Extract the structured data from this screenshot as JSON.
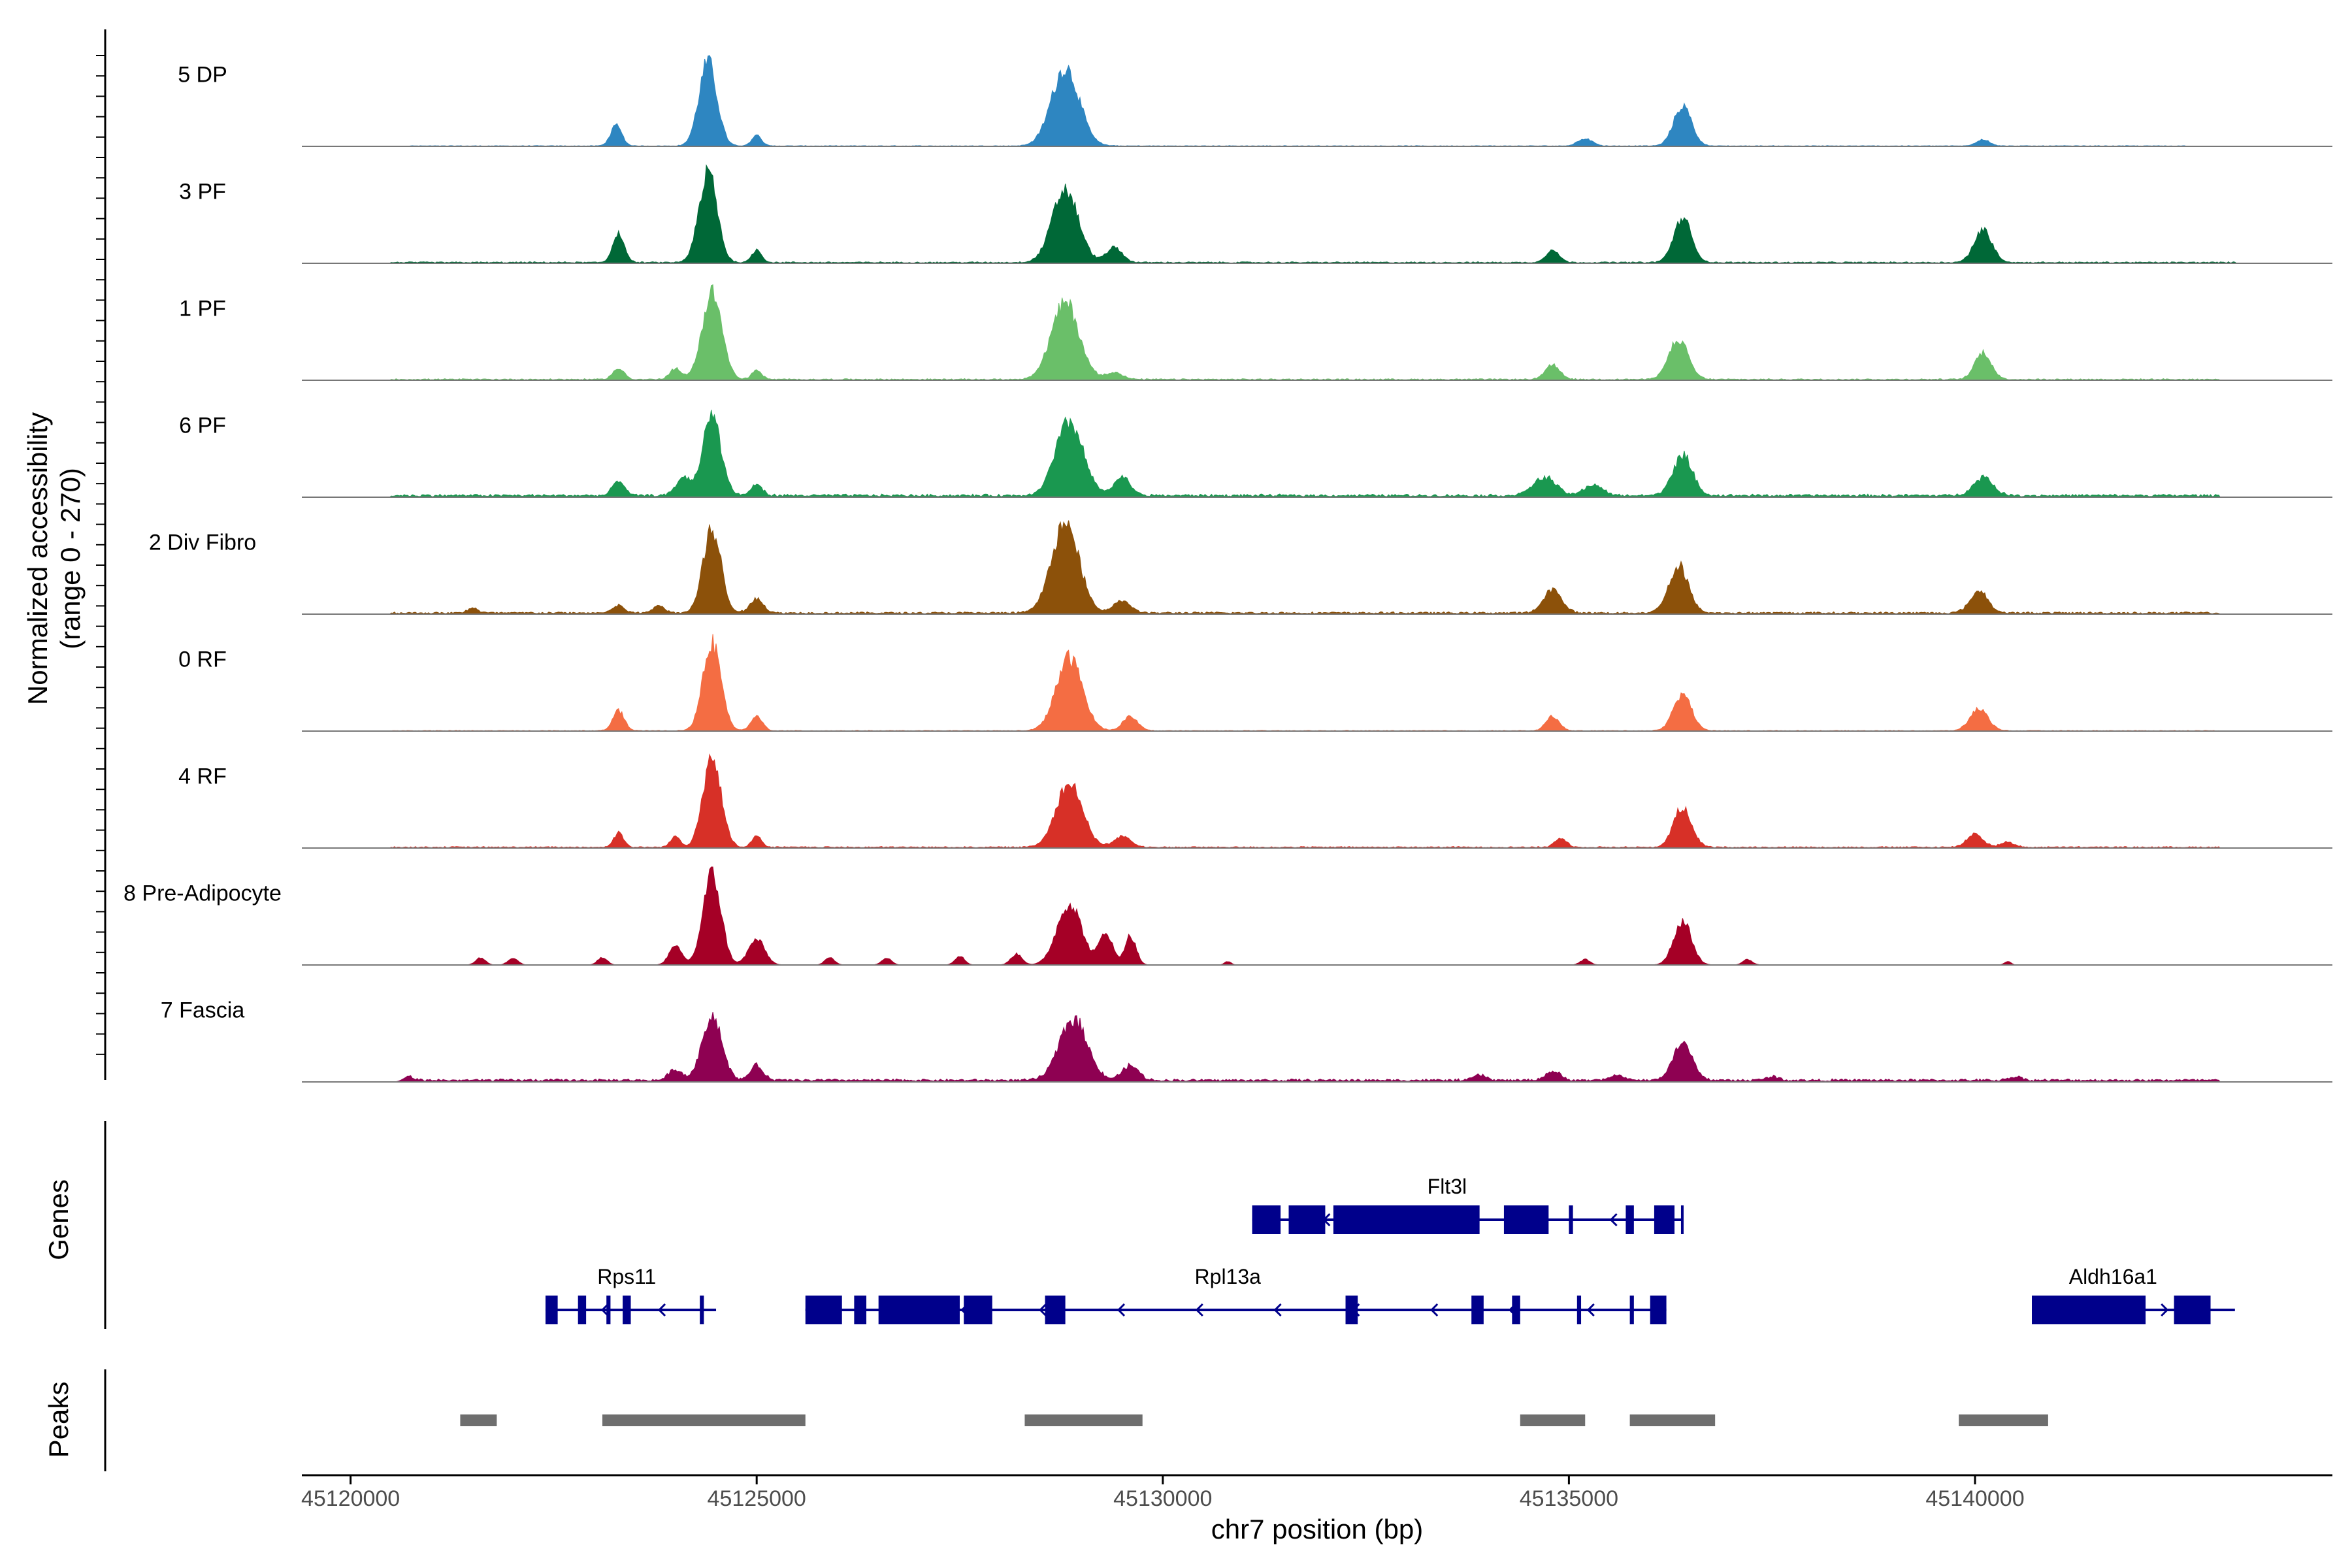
{
  "chart_data": {
    "type": "area",
    "title": "",
    "xlabel": "chr7 position (bp)",
    "ylabel": "Normalized accessibility",
    "ylabel_range": "(range 0 - 270)",
    "ylim": [
      0,
      270
    ],
    "xlim": [
      45119400,
      45144400
    ],
    "x_ticks": [
      45120000,
      45125000,
      45130000,
      45135000,
      45140000
    ],
    "x_tick_labels": [
      "45120000",
      "45125000",
      "45130000",
      "45135000",
      "45140000"
    ],
    "track_labels": {
      "genes": "Genes",
      "peaks": "Peaks"
    },
    "series": [
      {
        "name": "5 DP",
        "color": "#2e86c1",
        "peaks": [
          [
            45123270,
            55,
            70
          ],
          [
            45124400,
            230,
            110
          ],
          [
            45125000,
            30,
            60
          ],
          [
            45128800,
            215,
            170
          ],
          [
            45135200,
            20,
            90
          ],
          [
            45136400,
            110,
            110
          ],
          [
            45140100,
            18,
            80
          ]
        ],
        "bg_start": 45120700,
        "bg_end": 45142600,
        "noise": 1
      },
      {
        "name": "3 PF",
        "color": "#006837",
        "peaks": [
          [
            45123300,
            80,
            70
          ],
          [
            45124400,
            250,
            110
          ],
          [
            45125000,
            35,
            60
          ],
          [
            45128800,
            200,
            160
          ],
          [
            45129400,
            40,
            100
          ],
          [
            45134800,
            35,
            80
          ],
          [
            45136400,
            120,
            110
          ],
          [
            45140100,
            90,
            110
          ]
        ],
        "bg_start": 45120500,
        "bg_end": 45143200,
        "noise": 2
      },
      {
        "name": "1 PF",
        "color": "#6abf69",
        "peaks": [
          [
            45123300,
            30,
            70
          ],
          [
            45124000,
            30,
            70
          ],
          [
            45124450,
            240,
            120
          ],
          [
            45125000,
            25,
            60
          ],
          [
            45128800,
            210,
            170
          ],
          [
            45129400,
            20,
            100
          ],
          [
            45134800,
            40,
            90
          ],
          [
            45136350,
            110,
            120
          ],
          [
            45140100,
            75,
            100
          ]
        ],
        "bg_start": 45120500,
        "bg_end": 45143000,
        "noise": 2
      },
      {
        "name": "6 PF",
        "color": "#1a9850",
        "peaks": [
          [
            45123300,
            40,
            70
          ],
          [
            45124100,
            50,
            90
          ],
          [
            45124450,
            220,
            110
          ],
          [
            45125000,
            30,
            70
          ],
          [
            45128850,
            200,
            170
          ],
          [
            45129500,
            50,
            100
          ],
          [
            45134700,
            50,
            140
          ],
          [
            45135300,
            30,
            110
          ],
          [
            45136400,
            110,
            120
          ],
          [
            45140100,
            50,
            120
          ]
        ],
        "bg_start": 45120500,
        "bg_end": 45143000,
        "noise": 4
      },
      {
        "name": "2 Div Fibro",
        "color": "#8c510a",
        "peaks": [
          [
            45121500,
            14,
            60
          ],
          [
            45123300,
            20,
            70
          ],
          [
            45123800,
            20,
            70
          ],
          [
            45124450,
            230,
            110
          ],
          [
            45125000,
            40,
            80
          ],
          [
            45128800,
            240,
            170
          ],
          [
            45129500,
            35,
            100
          ],
          [
            45134800,
            65,
            110
          ],
          [
            45136350,
            130,
            120
          ],
          [
            45140050,
            60,
            110
          ]
        ],
        "bg_start": 45120500,
        "bg_end": 45143000,
        "noise": 3
      },
      {
        "name": "0 RF",
        "color": "#f46d43",
        "peaks": [
          [
            45123300,
            55,
            70
          ],
          [
            45124450,
            240,
            110
          ],
          [
            45125000,
            40,
            70
          ],
          [
            45128850,
            200,
            160
          ],
          [
            45129600,
            40,
            90
          ],
          [
            45134800,
            40,
            80
          ],
          [
            45136400,
            100,
            110
          ],
          [
            45140050,
            60,
            110
          ]
        ],
        "bg_start": 45120500,
        "bg_end": 45143000,
        "noise": 1
      },
      {
        "name": "4 RF",
        "color": "#d73027",
        "peaks": [
          [
            45123300,
            40,
            60
          ],
          [
            45124000,
            30,
            60
          ],
          [
            45124450,
            250,
            110
          ],
          [
            45125000,
            30,
            60
          ],
          [
            45128850,
            180,
            160
          ],
          [
            45129500,
            30,
            100
          ],
          [
            45134900,
            25,
            70
          ],
          [
            45136400,
            110,
            110
          ],
          [
            45140000,
            35,
            100
          ],
          [
            45140400,
            15,
            80
          ]
        ],
        "bg_start": 45120500,
        "bg_end": 45143000,
        "noise": 2
      },
      {
        "name": "8 Pre-Adipocyte",
        "color": "#a50026",
        "peaks": [
          [
            45121600,
            20,
            60
          ],
          [
            45122000,
            20,
            60
          ],
          [
            45123100,
            20,
            60
          ],
          [
            45124000,
            50,
            80
          ],
          [
            45124450,
            250,
            110
          ],
          [
            45125000,
            70,
            100
          ],
          [
            45125900,
            20,
            60
          ],
          [
            45126600,
            20,
            60
          ],
          [
            45127500,
            25,
            60
          ],
          [
            45128200,
            30,
            70
          ],
          [
            45128850,
            170,
            150
          ],
          [
            45129300,
            90,
            80
          ],
          [
            45129600,
            80,
            70
          ],
          [
            45130800,
            10,
            40
          ],
          [
            45135200,
            15,
            60
          ],
          [
            45136400,
            120,
            110
          ],
          [
            45137200,
            15,
            60
          ],
          [
            45140400,
            10,
            40
          ]
        ],
        "bg_start": 45121500,
        "bg_end": 45140500,
        "noise": 0
      },
      {
        "name": "7 Fascia",
        "color": "#8e0152",
        "peaks": [
          [
            45120700,
            12,
            60
          ],
          [
            45124000,
            30,
            80
          ],
          [
            45124450,
            180,
            120
          ],
          [
            45125000,
            40,
            80
          ],
          [
            45128900,
            170,
            170
          ],
          [
            45129600,
            40,
            100
          ],
          [
            45133900,
            15,
            80
          ],
          [
            45134800,
            25,
            90
          ],
          [
            45135600,
            15,
            80
          ],
          [
            45136400,
            100,
            120
          ],
          [
            45137500,
            10,
            80
          ],
          [
            45140500,
            10,
            80
          ]
        ],
        "bg_start": 45120700,
        "bg_end": 45143000,
        "noise": 4
      }
    ],
    "genes": [
      {
        "name": "Flt3l",
        "row": 0,
        "strand": "-",
        "start": 45131100,
        "end": 45136400,
        "label_x": 45133500,
        "exons": [
          [
            45131100,
            45131450
          ],
          [
            45131550,
            45132000
          ],
          [
            45132100,
            45133900
          ],
          [
            45134200,
            45134750
          ],
          [
            45135000,
            45135050
          ],
          [
            45135700,
            45135800
          ],
          [
            45136050,
            45136300
          ],
          [
            45136380,
            45136400
          ]
        ]
      },
      {
        "name": "Rps11",
        "row": 1,
        "strand": "-",
        "start": 45122400,
        "end": 45124500,
        "label_x": 45123400,
        "exons": [
          [
            45122400,
            45122550
          ],
          [
            45122800,
            45122900
          ],
          [
            45123150,
            45123200
          ],
          [
            45123350,
            45123450
          ],
          [
            45124300,
            45124350
          ]
        ]
      },
      {
        "name": "Rpl13a",
        "row": 1,
        "strand": "-",
        "start": 45125600,
        "end": 45136200,
        "label_x": 45130800,
        "exons": [
          [
            45125600,
            45126050
          ],
          [
            45126200,
            45126350
          ],
          [
            45126500,
            45127500
          ],
          [
            45127550,
            45127900
          ],
          [
            45128550,
            45128800
          ],
          [
            45132250,
            45132400
          ],
          [
            45133800,
            45133950
          ],
          [
            45134300,
            45134400
          ],
          [
            45135100,
            45135150
          ],
          [
            45135750,
            45135800
          ],
          [
            45136000,
            45136200
          ]
        ]
      },
      {
        "name": "Aldh16a1",
        "row": 1,
        "strand": "+",
        "start": 45140700,
        "end": 45143200,
        "label_x": 45141700,
        "exons": [
          [
            45140700,
            45142100
          ],
          [
            45142450,
            45142900
          ]
        ]
      }
    ],
    "peak_regions": [
      [
        45121350,
        45121800
      ],
      [
        45123100,
        45125600
      ],
      [
        45128300,
        45129750
      ],
      [
        45134400,
        45135200
      ],
      [
        45135750,
        45136800
      ],
      [
        45139800,
        45140900
      ]
    ]
  }
}
